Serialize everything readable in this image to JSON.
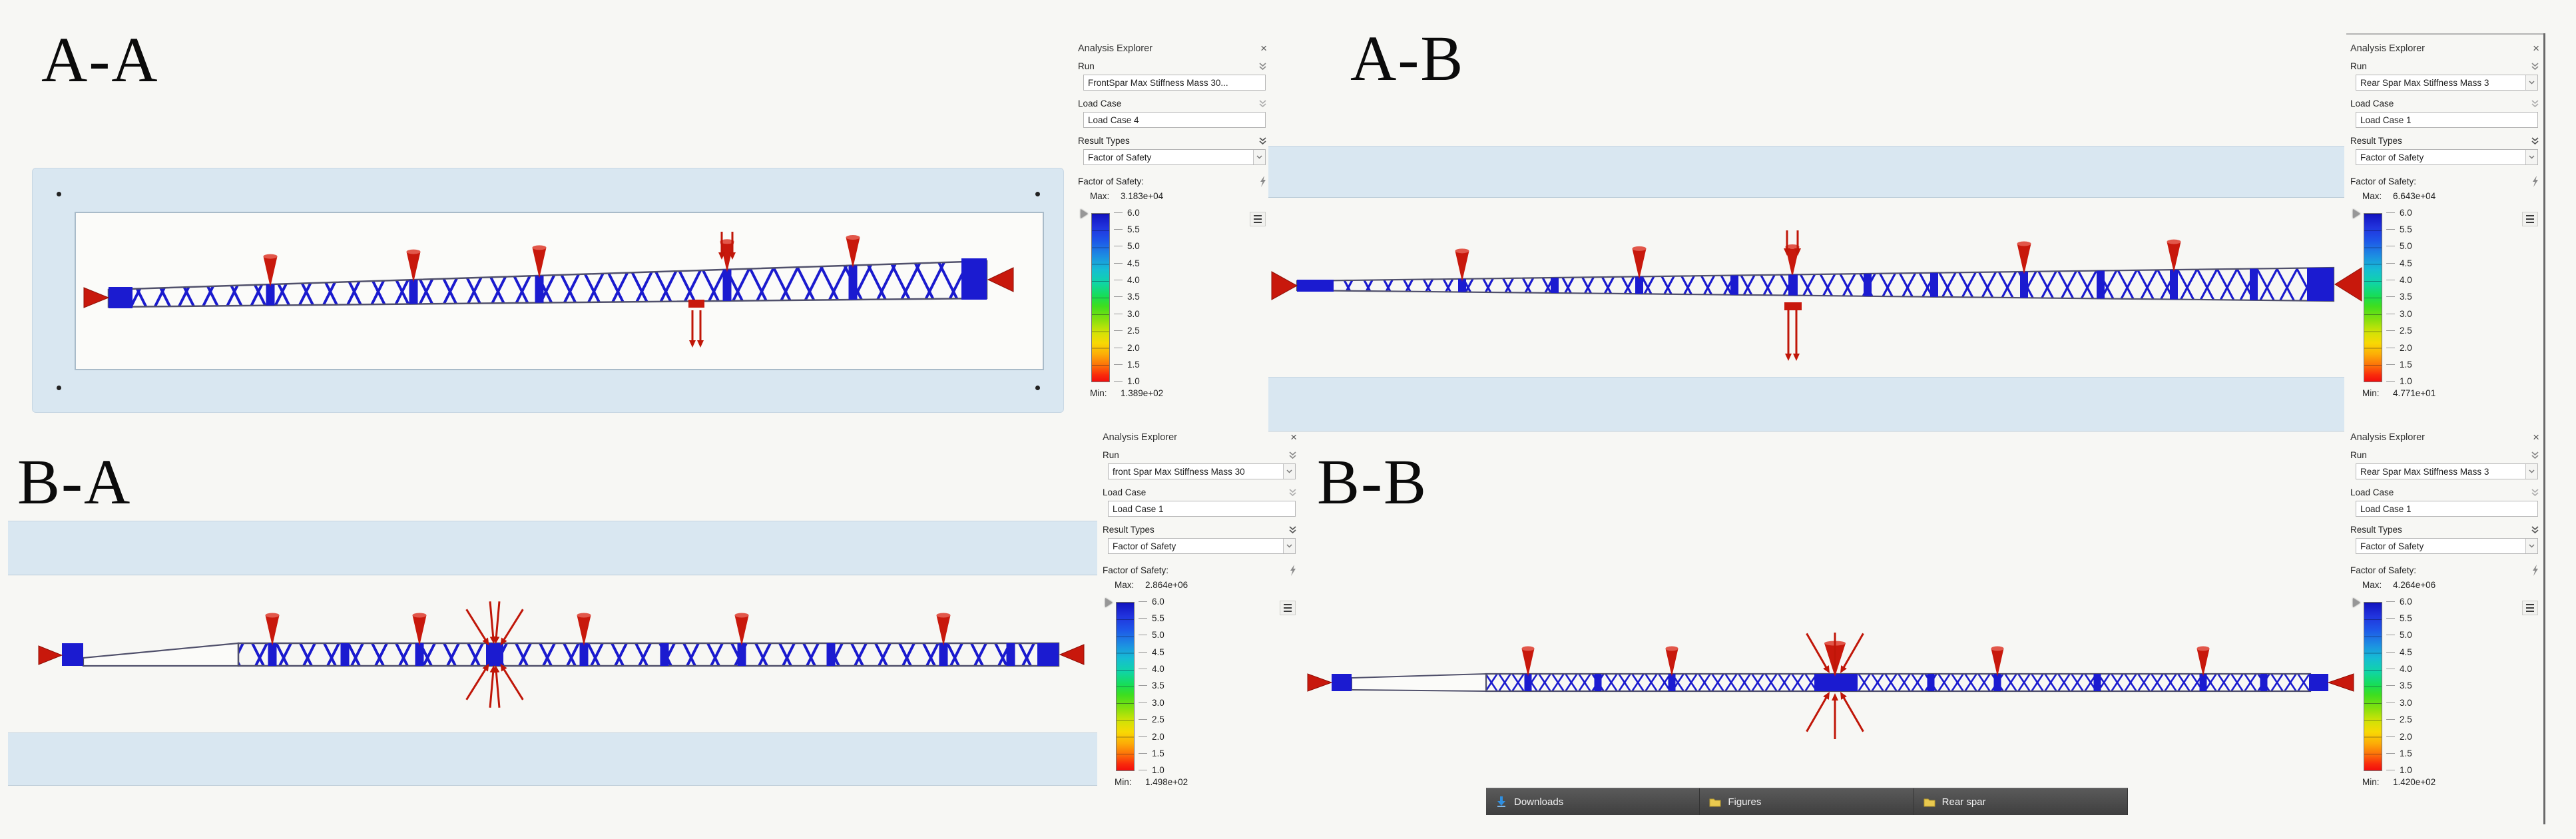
{
  "quadrants": [
    {
      "id": "AA",
      "label": "A-A"
    },
    {
      "id": "AB",
      "label": "A-B"
    },
    {
      "id": "BA",
      "label": "B-A"
    },
    {
      "id": "BB",
      "label": "B-B"
    }
  ],
  "glyphs": {
    "close": "×"
  },
  "panels": [
    {
      "title": "Analysis Explorer",
      "run_label": "Run",
      "run_value": "FrontSpar Max Stiffness Mass 30...",
      "load_case_label": "Load Case",
      "load_case_value": "Load Case 4",
      "result_types_label": "Result Types",
      "result_types_value": "Factor of Safety",
      "fos_label": "Factor of Safety:",
      "max_label": "Max:",
      "max_value": "3.183e+04",
      "min_label": "Min:",
      "min_value": "1.389e+02",
      "ticks": [
        "6.0",
        "5.5",
        "5.0",
        "4.5",
        "4.0",
        "3.5",
        "3.0",
        "2.5",
        "2.0",
        "1.5",
        "1.0"
      ]
    },
    {
      "title": "Analysis Explorer",
      "run_label": "Run",
      "run_value": "Rear Spar Max Stiffness Mass 3",
      "load_case_label": "Load Case",
      "load_case_value": "Load Case 1",
      "result_types_label": "Result Types",
      "result_types_value": "Factor of Safety",
      "fos_label": "Factor of Safety:",
      "max_label": "Max:",
      "max_value": "6.643e+04",
      "min_label": "Min:",
      "min_value": "4.771e+01",
      "ticks": [
        "6.0",
        "5.5",
        "5.0",
        "4.5",
        "4.0",
        "3.5",
        "3.0",
        "2.5",
        "2.0",
        "1.5",
        "1.0"
      ]
    },
    {
      "title": "Analysis Explorer",
      "run_label": "Run",
      "run_value": "front Spar Max Stiffness Mass 30",
      "load_case_label": "Load Case",
      "load_case_value": "Load Case 1",
      "result_types_label": "Result Types",
      "result_types_value": "Factor of Safety",
      "fos_label": "Factor of Safety:",
      "max_label": "Max:",
      "max_value": "2.864e+06",
      "min_label": "Min:",
      "min_value": "1.498e+02",
      "ticks": [
        "6.0",
        "5.5",
        "5.0",
        "4.5",
        "4.0",
        "3.5",
        "3.0",
        "2.5",
        "2.0",
        "1.5",
        "1.0"
      ]
    },
    {
      "title": "Analysis Explorer",
      "run_label": "Run",
      "run_value": "Rear Spar Max Stiffness Mass 3",
      "load_case_label": "Load Case",
      "load_case_value": "Load Case 1",
      "result_types_label": "Result Types",
      "result_types_value": "Factor of Safety",
      "fos_label": "Factor of Safety:",
      "max_label": "Max:",
      "max_value": "4.264e+06",
      "min_label": "Min:",
      "min_value": "1.420e+02",
      "ticks": [
        "6.0",
        "5.5",
        "5.0",
        "4.5",
        "4.0",
        "3.5",
        "3.0",
        "2.5",
        "2.0",
        "1.5",
        "1.0"
      ]
    }
  ],
  "taskbar": {
    "items": [
      {
        "icon": "download-icon",
        "label": "Downloads"
      },
      {
        "icon": "folder-icon",
        "label": "Figures"
      },
      {
        "icon": "folder-icon",
        "label": "Rear spar"
      }
    ]
  },
  "colors": {
    "structure_blue": "#1b1bd0",
    "load_red": "#c8180c",
    "design_space_blue": "#d9e7f1",
    "taskbar_gray": "#4a4a4a"
  }
}
